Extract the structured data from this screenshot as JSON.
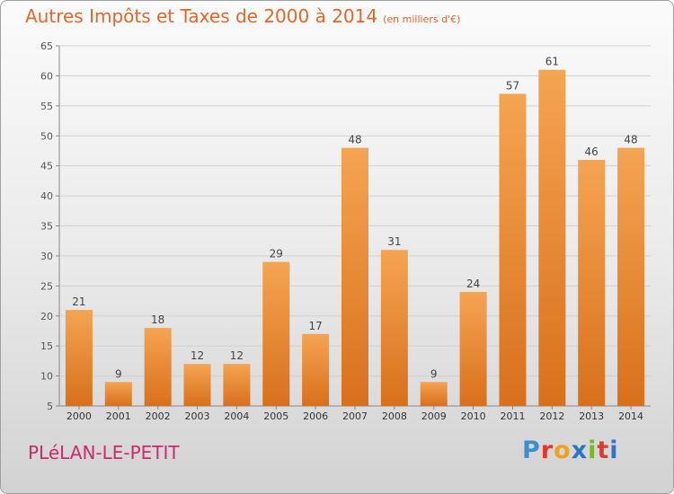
{
  "title": "Autres Impôts et Taxes de 2000 à 2014",
  "title_unit": "(en milliers d'€)",
  "commune": "PLéLAN-LE-PETIT",
  "logo": {
    "letters": [
      "P",
      "r",
      "o",
      "x",
      "i",
      "t",
      "i"
    ],
    "colors": [
      "#3a8fd0",
      "#e23a2a",
      "#f0a020",
      "#2b74c8",
      "#7ab826",
      "#e23a2a",
      "#2b74c8"
    ]
  },
  "colors": {
    "bar_top": "#f5a452",
    "bar_bottom": "#d8701b",
    "title": "#e4662a",
    "commune": "#cc2a6a"
  },
  "chart_data": {
    "type": "bar",
    "categories": [
      "2000",
      "2001",
      "2002",
      "2003",
      "2004",
      "2005",
      "2006",
      "2007",
      "2008",
      "2009",
      "2010",
      "2011",
      "2012",
      "2013",
      "2014"
    ],
    "values": [
      21,
      9,
      18,
      12,
      12,
      29,
      17,
      48,
      31,
      9,
      24,
      57,
      61,
      46,
      48
    ],
    "ylim": [
      5,
      65
    ],
    "yticks": [
      5,
      10,
      15,
      20,
      25,
      30,
      35,
      40,
      45,
      50,
      55,
      60,
      65
    ],
    "grid": true,
    "xlabel": "",
    "ylabel": ""
  }
}
